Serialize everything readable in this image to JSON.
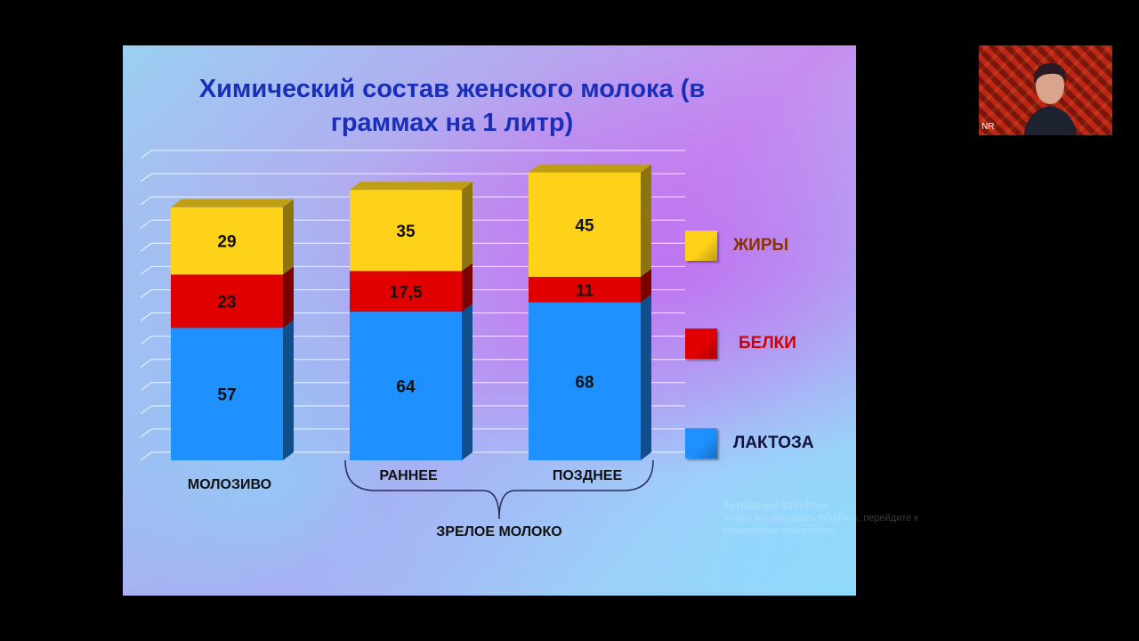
{
  "slide": {
    "title": "Химический состав женского молока (в граммах на 1 литр)"
  },
  "chart_data": {
    "type": "bar",
    "stacked": true,
    "categories": [
      "МОЛОЗИВО",
      "РАННЕЕ",
      "ПОЗДНЕЕ"
    ],
    "series": [
      {
        "name": "ЛАКТОЗА",
        "values": [
          57,
          64,
          68
        ],
        "labels": [
          "57",
          "64",
          "68"
        ],
        "color": "#1e90ff"
      },
      {
        "name": "БЕЛКИ",
        "values": [
          23,
          17.5,
          11
        ],
        "labels": [
          "23",
          "17,5",
          "11"
        ],
        "color": "#e00000"
      },
      {
        "name": "ЖИРЫ",
        "values": [
          29,
          35,
          45
        ],
        "labels": [
          "29",
          "35",
          "45"
        ],
        "color": "#ffd21a"
      }
    ],
    "group_label": "ЗРЕЛОЕ МОЛОКО",
    "ylim": [
      0,
      130
    ],
    "grid": true,
    "legend_position": "right"
  },
  "legend": {
    "items": [
      {
        "label": "ЖИРЫ",
        "color": "#ffd21a",
        "text_color": "#8a3300"
      },
      {
        "label": "БЕЛКИ",
        "color": "#e00000",
        "text_color": "#d40000"
      },
      {
        "label": "ЛАКТОЗА",
        "color": "#1e90ff",
        "text_color": "#10123a"
      }
    ]
  },
  "webcam": {
    "initials": "NR"
  },
  "activation": {
    "title": "Активация Windows",
    "text": "Чтобы активировать Windows, перейдите к параметрам компьютера."
  }
}
